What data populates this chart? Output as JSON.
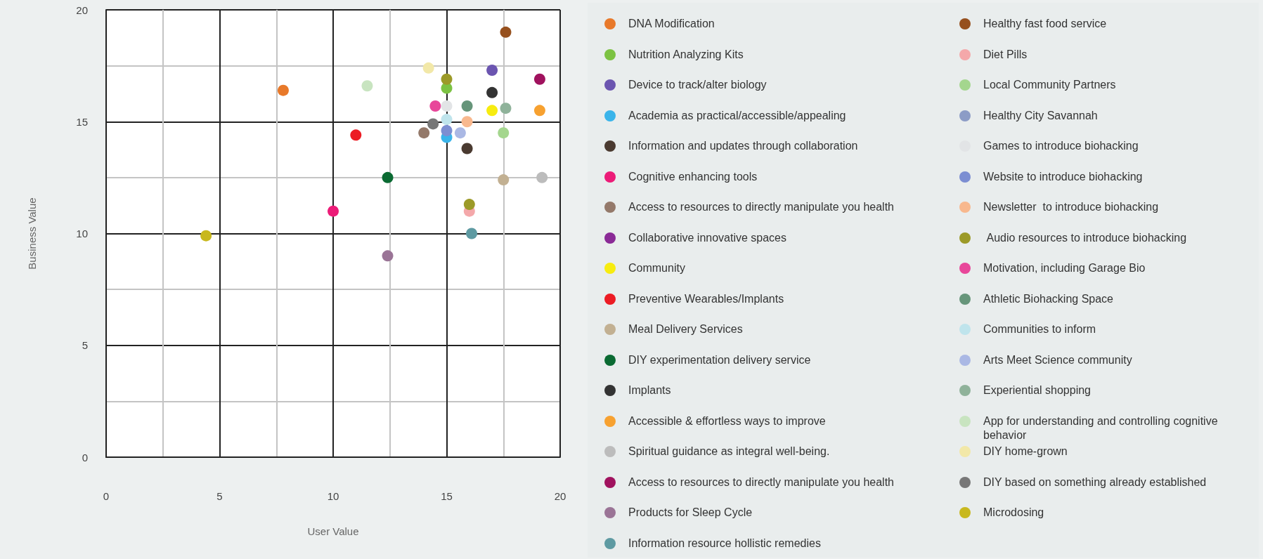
{
  "chart_data": {
    "type": "scatter",
    "xlabel": "User Value",
    "ylabel": "Business Value",
    "xlim": [
      0,
      20
    ],
    "ylim": [
      0,
      20
    ],
    "xticks": [
      0,
      {
        "value": 2.5,
        "label": null
      },
      5,
      {
        "value": 7.5,
        "label": null
      },
      10,
      {
        "value": 12.5,
        "label": null
      },
      15,
      {
        "value": 17.5,
        "label": null
      },
      20
    ],
    "yticks": [
      0,
      {
        "value": 2.5,
        "label": null
      },
      5,
      {
        "value": 7.5,
        "label": null
      },
      10,
      {
        "value": 12.5,
        "label": null
      },
      15,
      {
        "value": 17.5,
        "label": null
      },
      20
    ],
    "grid": true,
    "legend": "right",
    "marker": "circle",
    "series": [
      {
        "name": "DNA Modification",
        "color": "#e8792a",
        "x": [
          7.8
        ],
        "values": [
          16.4
        ]
      },
      {
        "name": "Nutrition Analyzing Kits",
        "color": "#7cc242",
        "x": [
          15
        ],
        "values": [
          16.5
        ]
      },
      {
        "name": "Device to track/alter biology",
        "color": "#6b55b0",
        "x": [
          17
        ],
        "values": [
          17.3
        ]
      },
      {
        "name": "Academia as practical/accessible/appealing",
        "color": "#3ab4ea",
        "x": [
          15
        ],
        "values": [
          14.3
        ]
      },
      {
        "name": "Information and updates through collaboration",
        "color": "#4a3a30",
        "x": [
          15.9
        ],
        "values": [
          13.8
        ]
      },
      {
        "name": "Cognitive enhancing tools",
        "color": "#ec1c78",
        "x": [
          10
        ],
        "values": [
          11
        ]
      },
      {
        "name": "Access to resources to directly manipulate you health",
        "color": "#94796a",
        "x": [
          14
        ],
        "values": [
          14.5
        ]
      },
      {
        "name": "Collaborative innovative spaces",
        "color": "#8a2a96",
        "x": [
          null
        ],
        "values": [
          null
        ]
      },
      {
        "name": "Community",
        "color": "#f7ec10",
        "x": [
          17
        ],
        "values": [
          15.5
        ]
      },
      {
        "name": "Preventive Wearables/Implants",
        "color": "#ec1c24",
        "x": [
          11
        ],
        "values": [
          14.4
        ]
      },
      {
        "name": "Meal Delivery Services",
        "color": "#c2b092",
        "x": [
          17.5
        ],
        "values": [
          12.4
        ]
      },
      {
        "name": "DIY experimentation delivery service",
        "color": "#0a6a32",
        "x": [
          12.4
        ],
        "values": [
          12.5
        ]
      },
      {
        "name": "Implants",
        "color": "#333333",
        "x": [
          17
        ],
        "values": [
          16.3
        ]
      },
      {
        "name": "Accessible & effortless ways to improve",
        "color": "#f7a130",
        "x": [
          19.1
        ],
        "values": [
          15.5
        ]
      },
      {
        "name": "Spiritual guidance as integral well-being.",
        "color": "#bcbcbc",
        "x": [
          19.2
        ],
        "values": [
          12.5
        ]
      },
      {
        "name": "Access to resources to directly manipulate you health",
        "color": "#a0125e",
        "x": [
          19.1
        ],
        "values": [
          16.9
        ]
      },
      {
        "name": "Products for Sleep Cycle",
        "color": "#9a7496",
        "x": [
          12.4
        ],
        "values": [
          9
        ]
      },
      {
        "name": "Information resource hollistic remedies",
        "color": "#5e9aa2",
        "x": [
          16.1
        ],
        "values": [
          10
        ]
      },
      {
        "name": "Healthy fast food service",
        "color": "#96501e",
        "x": [
          17.6
        ],
        "values": [
          19
        ]
      },
      {
        "name": "Diet Pills",
        "color": "#f4a8aa",
        "x": [
          16
        ],
        "values": [
          11
        ]
      },
      {
        "name": "Local Community Partners",
        "color": "#a4d68e",
        "x": [
          17.5
        ],
        "values": [
          14.5
        ]
      },
      {
        "name": "Healthy City Savannah",
        "color": "#8c9cc6",
        "x": [
          null
        ],
        "values": [
          null
        ]
      },
      {
        "name": "Games to introduce biohacking",
        "color": "#e2e4e6",
        "x": [
          15
        ],
        "values": [
          15.7
        ]
      },
      {
        "name": "Website to introduce biohacking",
        "color": "#7c8ed2",
        "x": [
          15
        ],
        "values": [
          14.6
        ]
      },
      {
        "name": "Newsletter  to introduce biohacking",
        "color": "#f8b88e",
        "x": [
          15.9
        ],
        "values": [
          15
        ]
      },
      {
        "name": " Audio resources to introduce biohacking",
        "color": "#9c9a28",
        "x": [
          15,
          16
        ],
        "values": [
          16.9,
          11.3
        ]
      },
      {
        "name": "Motivation, including Garage Bio",
        "color": "#e8479a",
        "x": [
          14.5
        ],
        "values": [
          15.7
        ]
      },
      {
        "name": "Athletic Biohacking Space",
        "color": "#66957a",
        "x": [
          15.9
        ],
        "values": [
          15.7
        ]
      },
      {
        "name": "Communities to inform",
        "color": "#bfe4ec",
        "x": [
          15
        ],
        "values": [
          15.1
        ]
      },
      {
        "name": "Arts Meet Science community",
        "color": "#aab8e4",
        "x": [
          15.6
        ],
        "values": [
          14.5
        ]
      },
      {
        "name": "Experiential shopping",
        "color": "#8fb29a",
        "x": [
          17.6
        ],
        "values": [
          15.6
        ]
      },
      {
        "name": "App for understanding and controlling cognitive behavior",
        "color": "#c8e4c0",
        "x": [
          11.5
        ],
        "values": [
          16.6
        ]
      },
      {
        "name": "DIY home-grown",
        "color": "#f2e8a8",
        "x": [
          14.2
        ],
        "values": [
          17.4
        ]
      },
      {
        "name": "DIY based on something already established",
        "color": "#777777",
        "x": [
          14.4
        ],
        "values": [
          14.9
        ]
      },
      {
        "name": "Microdosing",
        "color": "#c8b81e",
        "x": [
          4.4
        ],
        "values": [
          9.9
        ]
      }
    ]
  }
}
